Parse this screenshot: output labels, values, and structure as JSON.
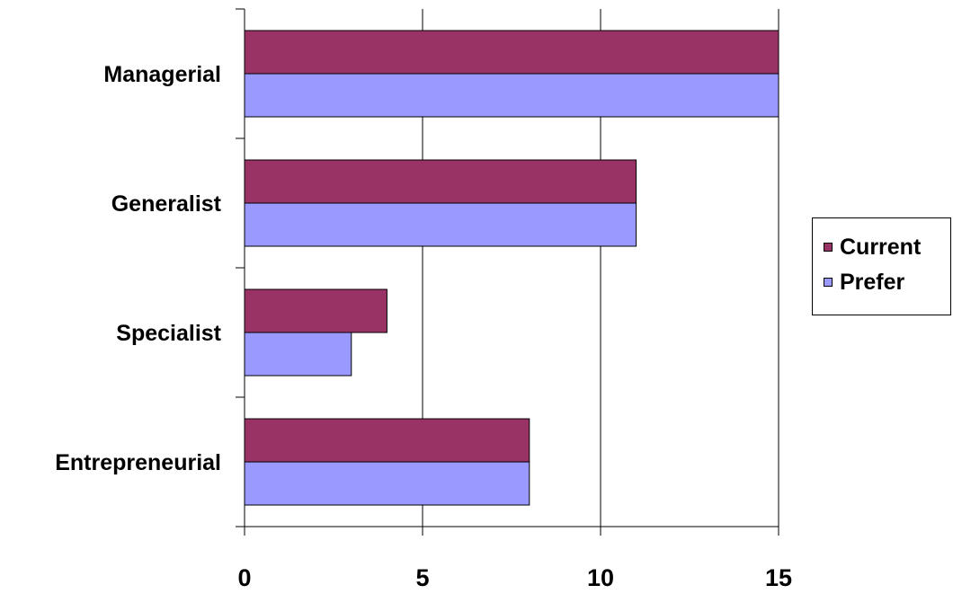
{
  "chart_data": {
    "type": "bar",
    "orientation": "horizontal",
    "title": "",
    "xlabel": "",
    "ylabel": "",
    "categories": [
      "Managerial",
      "Generalist",
      "Specialist",
      "Entrepreneurial"
    ],
    "series": [
      {
        "name": "Current",
        "color": "#993366",
        "values": [
          15,
          11,
          4,
          8
        ]
      },
      {
        "name": "Prefer",
        "color": "#9999FF",
        "values": [
          15,
          11,
          3,
          8
        ]
      }
    ],
    "xlim": [
      0,
      15
    ],
    "xticks": [
      0,
      5,
      10,
      15
    ],
    "grid": "vertical",
    "legend": "right"
  }
}
